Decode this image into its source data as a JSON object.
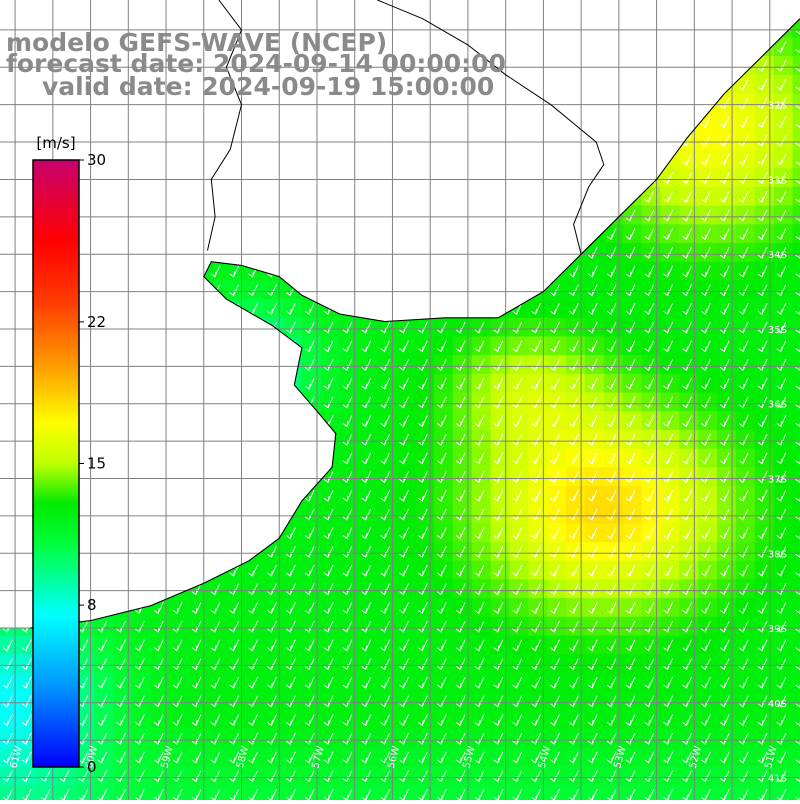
{
  "title": {
    "line1": "modelo GEFS-WAVE (NCEP)",
    "line2": "forecast date: 2024-09-14 00:00:00",
    "line3": "valid date: 2024-09-19 15:00:00"
  },
  "colorbar": {
    "unit_label": "[m/s]",
    "ticks": [
      "30",
      "22",
      "15",
      "8",
      "0"
    ],
    "tick_values": [
      30,
      22,
      15,
      8,
      0
    ],
    "range": [
      0,
      30
    ],
    "colors": [
      "#0000ff",
      "#00c8ff",
      "#00ffff",
      "#00ff00",
      "#c8ff00",
      "#ffff00",
      "#ff8000",
      "#ff0000",
      "#c8006e"
    ]
  },
  "map": {
    "lat_labels": [
      "32S",
      "33S",
      "34S",
      "35S",
      "36S",
      "37S",
      "38S",
      "39S",
      "40S",
      "41S"
    ],
    "lon_labels": [
      "61W",
      "60W",
      "59W",
      "58W",
      "57W",
      "56W",
      "55W",
      "54W",
      "53W",
      "52W",
      "51W"
    ],
    "lat_range": [
      -41.3,
      -30.6
    ],
    "lon_range": [
      -61.2,
      -50.6
    ],
    "arrow_direction": "south-southwest",
    "land_color": "#ffffff",
    "grid_color": "#808080",
    "coast_color": "#000000"
  }
}
